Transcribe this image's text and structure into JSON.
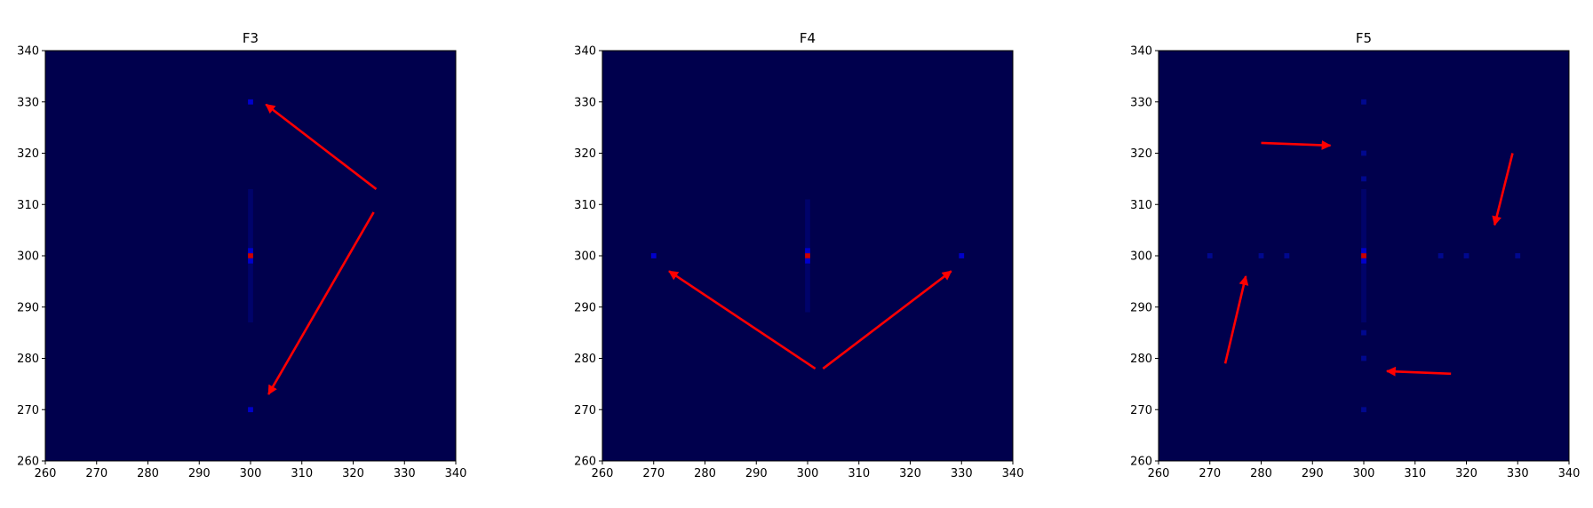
{
  "colors": {
    "background": "#00004d",
    "arrow": "#ff0000",
    "peak_center": "#cc0000",
    "peak_bright": "#0000cc",
    "peak_dim": "#000aa0",
    "frame": "#000000"
  },
  "chart_data": [
    {
      "type": "heatmap",
      "title": "F3",
      "xlim": [
        260,
        340
      ],
      "ylim": [
        260,
        340
      ],
      "xticks": [
        260,
        270,
        280,
        290,
        300,
        310,
        320,
        330,
        340
      ],
      "yticks": [
        260,
        270,
        280,
        290,
        300,
        310,
        320,
        330,
        340
      ],
      "grid": false,
      "peaks": [
        {
          "x": 300,
          "y": 300,
          "level": "center"
        },
        {
          "x": 300,
          "y": 330,
          "level": "bright"
        },
        {
          "x": 300,
          "y": 270,
          "level": "bright"
        },
        {
          "x": 300,
          "y": 301,
          "level": "bright"
        },
        {
          "x": 300,
          "y": 299,
          "level": "bright"
        }
      ],
      "streaks": [
        {
          "orientation": "vertical",
          "at": 300,
          "from": 287,
          "to": 313
        }
      ],
      "arrows": [
        {
          "from": [
            324.5,
            313
          ],
          "to": [
            303,
            329.5
          ]
        },
        {
          "from": [
            324,
            308.5
          ],
          "to": [
            303.5,
            273
          ]
        }
      ]
    },
    {
      "type": "heatmap",
      "title": "F4",
      "xlim": [
        260,
        340
      ],
      "ylim": [
        260,
        340
      ],
      "xticks": [
        260,
        270,
        280,
        290,
        300,
        310,
        320,
        330,
        340
      ],
      "yticks": [
        260,
        270,
        280,
        290,
        300,
        310,
        320,
        330,
        340
      ],
      "grid": false,
      "peaks": [
        {
          "x": 300,
          "y": 300,
          "level": "center"
        },
        {
          "x": 270,
          "y": 300,
          "level": "bright"
        },
        {
          "x": 330,
          "y": 300,
          "level": "bright"
        },
        {
          "x": 300,
          "y": 301,
          "level": "bright"
        },
        {
          "x": 300,
          "y": 299,
          "level": "bright"
        }
      ],
      "streaks": [
        {
          "orientation": "vertical",
          "at": 300,
          "from": 289,
          "to": 311
        }
      ],
      "arrows": [
        {
          "from": [
            301.5,
            278
          ],
          "to": [
            273,
            297
          ]
        },
        {
          "from": [
            303,
            278
          ],
          "to": [
            328,
            297
          ]
        }
      ]
    },
    {
      "type": "heatmap",
      "title": "F5",
      "xlim": [
        260,
        340
      ],
      "ylim": [
        260,
        340
      ],
      "xticks": [
        260,
        270,
        280,
        290,
        300,
        310,
        320,
        330,
        340
      ],
      "yticks": [
        260,
        270,
        280,
        290,
        300,
        310,
        320,
        330,
        340
      ],
      "grid": false,
      "peaks": [
        {
          "x": 300,
          "y": 300,
          "level": "center"
        },
        {
          "x": 300,
          "y": 301,
          "level": "bright"
        },
        {
          "x": 300,
          "y": 299,
          "level": "bright"
        },
        {
          "x": 270,
          "y": 300,
          "level": "dim"
        },
        {
          "x": 280,
          "y": 300,
          "level": "dim"
        },
        {
          "x": 285,
          "y": 300,
          "level": "dim"
        },
        {
          "x": 315,
          "y": 300,
          "level": "dim"
        },
        {
          "x": 320,
          "y": 300,
          "level": "dim"
        },
        {
          "x": 330,
          "y": 300,
          "level": "dim"
        },
        {
          "x": 300,
          "y": 270,
          "level": "dim"
        },
        {
          "x": 300,
          "y": 280,
          "level": "dim"
        },
        {
          "x": 300,
          "y": 285,
          "level": "dim"
        },
        {
          "x": 300,
          "y": 315,
          "level": "dim"
        },
        {
          "x": 300,
          "y": 320,
          "level": "dim"
        },
        {
          "x": 300,
          "y": 330,
          "level": "dim"
        }
      ],
      "streaks": [
        {
          "orientation": "vertical",
          "at": 300,
          "from": 287,
          "to": 313
        }
      ],
      "arrows": [
        {
          "from": [
            280,
            322
          ],
          "to": [
            293.5,
            321.5
          ]
        },
        {
          "from": [
            329,
            320
          ],
          "to": [
            325.5,
            306
          ]
        },
        {
          "from": [
            273,
            279
          ],
          "to": [
            277,
            296
          ]
        },
        {
          "from": [
            317,
            277
          ],
          "to": [
            304.5,
            277.5
          ]
        }
      ]
    }
  ]
}
